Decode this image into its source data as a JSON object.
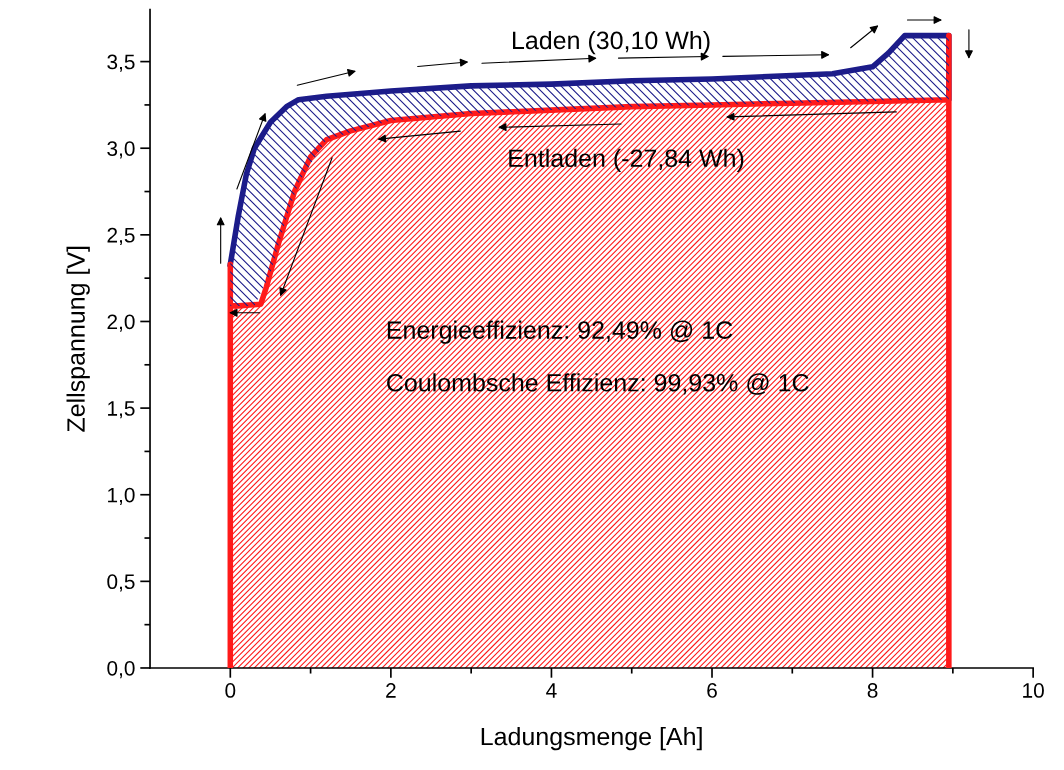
{
  "chart_data": {
    "type": "area",
    "xlabel": "Ladungsmenge [Ah]",
    "ylabel": "Zellspannung [V]",
    "xlim": [
      -1,
      10
    ],
    "xticks": [
      0,
      2,
      4,
      6,
      8,
      10
    ],
    "ylim": [
      0,
      3.8
    ],
    "yticks": [
      {
        "value": 0,
        "label": "0,0"
      },
      {
        "value": 0.5,
        "label": "0,5"
      },
      {
        "value": 1,
        "label": "1,0"
      },
      {
        "value": 1.5,
        "label": "1,5"
      },
      {
        "value": 2,
        "label": "2,0"
      },
      {
        "value": 2.5,
        "label": "2,5"
      },
      {
        "value": 3,
        "label": "3,0"
      },
      {
        "value": 3.5,
        "label": "3,5"
      }
    ],
    "grid": false,
    "legend": false,
    "series": [
      {
        "type": "line",
        "color": "#1c1c8a",
        "x": [
          0,
          0.1,
          0.2,
          0.3,
          0.5,
          0.7,
          0.85,
          1.2,
          2,
          3,
          4,
          5,
          6,
          7,
          7.5,
          8,
          8.2,
          8.4,
          8.95,
          8.95
        ],
        "values": [
          2.33,
          2.61,
          2.85,
          3.0,
          3.15,
          3.24,
          3.28,
          3.3,
          3.33,
          3.36,
          3.37,
          3.39,
          3.4,
          3.42,
          3.43,
          3.47,
          3.55,
          3.65,
          3.65,
          3.29
        ],
        "upper": [
          2.33,
          2.61,
          2.85,
          3.0,
          3.15,
          3.24,
          3.28,
          3.3,
          3.33,
          3.36,
          3.37,
          3.39,
          3.4,
          3.42,
          3.43,
          3.47,
          3.55,
          3.65,
          3.65,
          3.29
        ],
        "lower": [
          2.09,
          2.09,
          2.09,
          2.09,
          2.28,
          2.6,
          2.8,
          3.05,
          3.16,
          3.2,
          3.22,
          3.24,
          3.25,
          3.26,
          3.27,
          3.27,
          3.28,
          3.28,
          3.28,
          3.28
        ]
      },
      {
        "color": "#ff1a1a",
        "x": [
          0,
          0,
          0,
          0.1,
          0.38,
          0.45,
          0.6,
          0.8,
          1.0,
          1.2,
          1.5,
          2,
          3,
          4,
          5,
          6,
          7,
          8,
          8.95,
          8.95,
          8.95
        ],
        "values": [
          0,
          2.33,
          2.09,
          2.09,
          2.1,
          2.2,
          2.45,
          2.75,
          2.95,
          3.05,
          3.1,
          3.16,
          3.2,
          3.22,
          3.24,
          3.25,
          3.26,
          3.27,
          3.28,
          3.65,
          0
        ]
      }
    ],
    "annotations": [
      "Laden (30,10 Wh)",
      "Entladen (-27,84 Wh)",
      "Energieeffizienz: 92,49% @ 1C",
      "Coulombsche Effizienz: 99,93% @ 1C"
    ]
  }
}
